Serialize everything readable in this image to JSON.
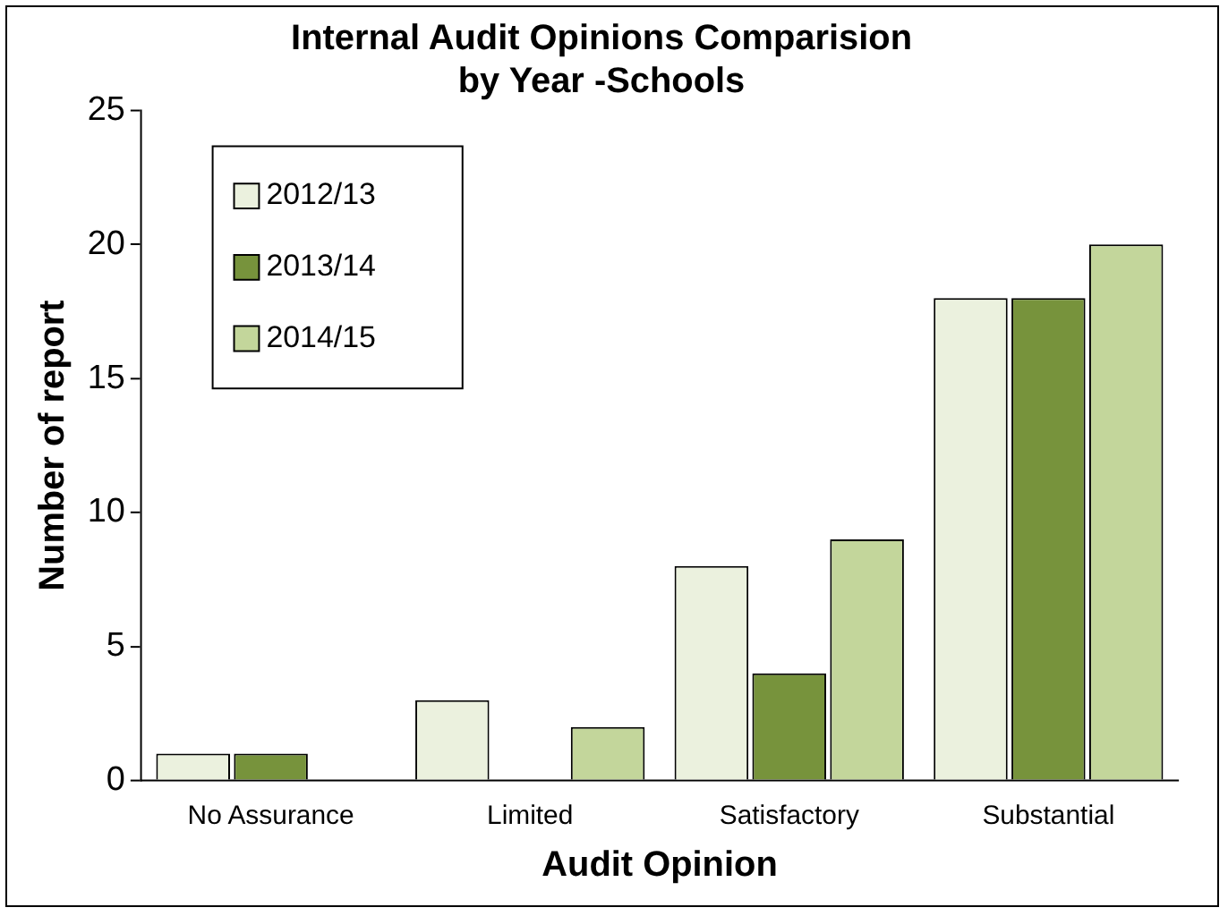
{
  "chart_data": {
    "type": "bar",
    "title": "Internal Audit Opinions Comparision\nby Year -Schools",
    "xlabel": "Audit Opinion",
    "ylabel": "Number of report",
    "categories": [
      "No Assurance",
      "Limited",
      "Satisfactory",
      "Substantial"
    ],
    "series": [
      {
        "name": "2012/13",
        "color": "#ebf1de",
        "values": [
          1,
          3,
          8,
          18
        ]
      },
      {
        "name": "2013/14",
        "color": "#77933c",
        "values": [
          1,
          0,
          4,
          18
        ]
      },
      {
        "name": "2014/15",
        "color": "#c3d69b",
        "values": [
          0,
          2,
          9,
          20
        ]
      }
    ],
    "ylim": [
      0,
      25
    ],
    "yticks": [
      0,
      5,
      10,
      15,
      20,
      25
    ],
    "grid": false,
    "legend": "top left"
  }
}
